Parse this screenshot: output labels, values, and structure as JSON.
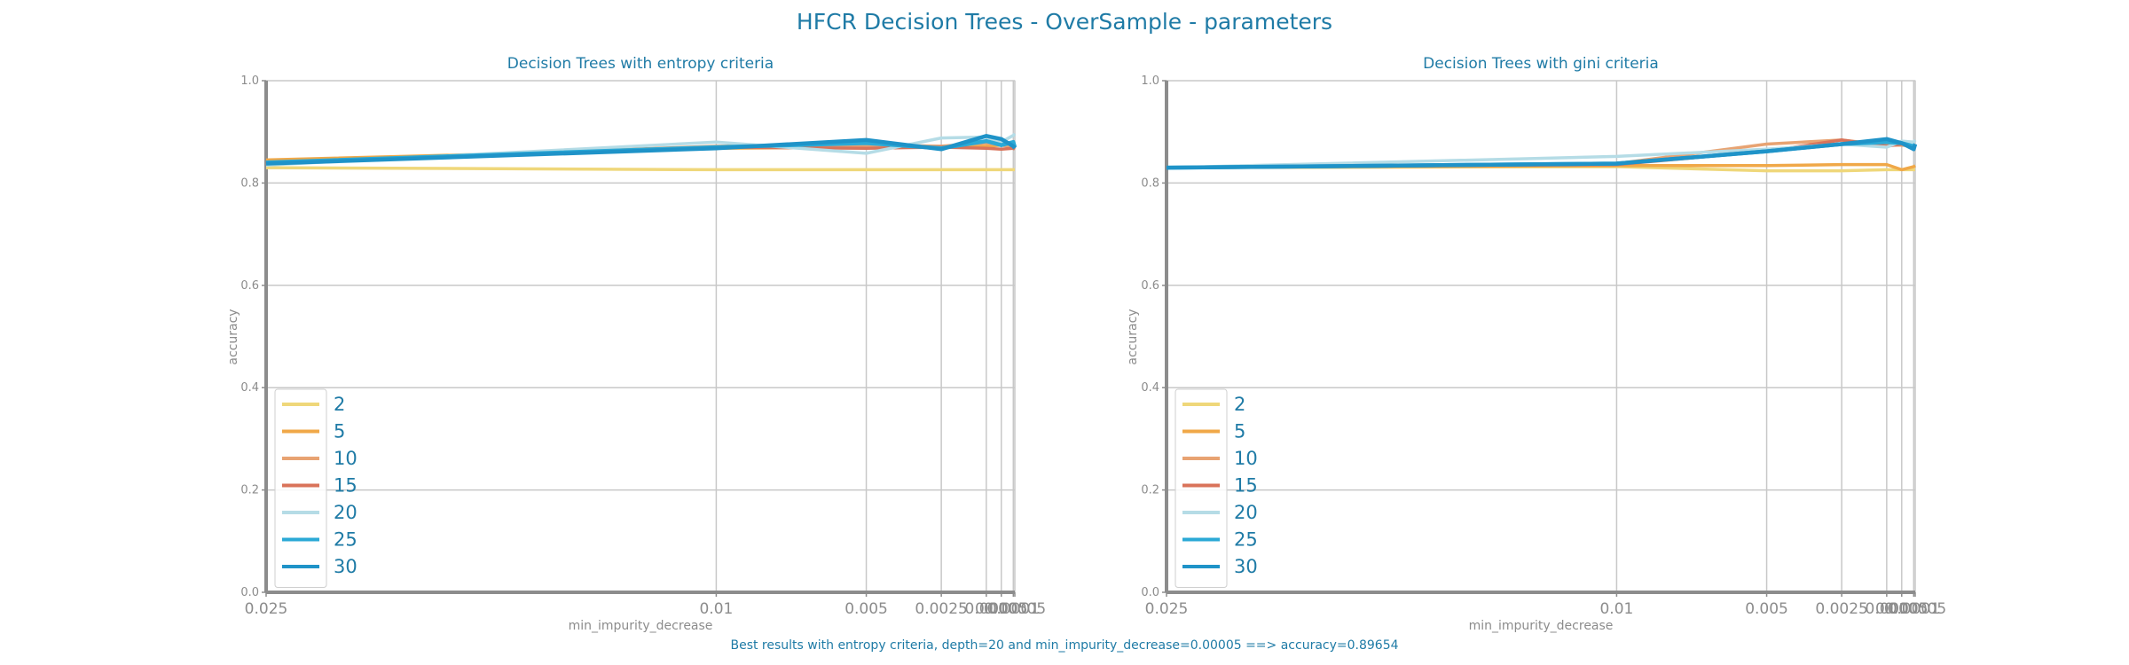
{
  "figure": {
    "title": "HFCR Decision Trees - OverSample - parameters",
    "footer": "Best results with entropy criteria, depth=20 and min_impurity_decrease=0.00005 ==> accuracy=0.89654"
  },
  "colors": {
    "text": "#1f7ba6",
    "axis": "#8c8c8c",
    "grid": "#c8c8c8",
    "series": [
      "#efd77a",
      "#f0a848",
      "#e8a372",
      "#d9735a",
      "#b5dce6",
      "#2ba9d6",
      "#1f93c8"
    ]
  },
  "chart_data": [
    {
      "type": "line",
      "title": "Decision Trees with entropy criteria",
      "xlabel": "min_impurity_decrease",
      "ylabel": "accuracy",
      "x": [
        0.025,
        0.01,
        0.005,
        0.0025,
        0.001,
        0.0005,
        0.0001,
        5e-05
      ],
      "xticklabels": [
        "0.025",
        "0.01",
        "0.005",
        "0.0025",
        "0.001",
        "0.0005",
        "0.0001",
        "0.00005"
      ],
      "xscale": "reversed-linear",
      "ylim": [
        0.0,
        1.0
      ],
      "yticks": [
        "0.0",
        "0.2",
        "0.4",
        "0.6",
        "0.8",
        "1.0"
      ],
      "grid": true,
      "legend_position": "lower-left",
      "series": [
        {
          "name": "2",
          "values": [
            0.83,
            0.826,
            0.826,
            0.826,
            0.826,
            0.826,
            0.826,
            0.826
          ]
        },
        {
          "name": "5",
          "values": [
            0.845,
            0.868,
            0.87,
            0.87,
            0.872,
            0.874,
            0.874,
            0.874
          ]
        },
        {
          "name": "10",
          "values": [
            0.84,
            0.872,
            0.874,
            0.872,
            0.878,
            0.874,
            0.87,
            0.872
          ]
        },
        {
          "name": "15",
          "values": [
            0.838,
            0.87,
            0.868,
            0.87,
            0.868,
            0.866,
            0.868,
            0.866
          ]
        },
        {
          "name": "20",
          "values": [
            0.835,
            0.88,
            0.858,
            0.888,
            0.89,
            0.88,
            0.893,
            0.8965
          ]
        },
        {
          "name": "25",
          "values": [
            0.84,
            0.87,
            0.878,
            0.868,
            0.882,
            0.874,
            0.88,
            0.87
          ]
        },
        {
          "name": "30",
          "values": [
            0.838,
            0.868,
            0.884,
            0.866,
            0.892,
            0.886,
            0.872,
            0.868
          ]
        }
      ]
    },
    {
      "type": "line",
      "title": "Decision Trees with gini criteria",
      "xlabel": "min_impurity_decrease",
      "ylabel": "accuracy",
      "x": [
        0.025,
        0.01,
        0.005,
        0.0025,
        0.001,
        0.0005,
        0.0001,
        5e-05
      ],
      "xticklabels": [
        "0.025",
        "0.01",
        "0.005",
        "0.0025",
        "0.001",
        "0.0005",
        "0.0001",
        "0.00005"
      ],
      "xscale": "reversed-linear",
      "ylim": [
        0.0,
        1.0
      ],
      "yticks": [
        "0.0",
        "0.2",
        "0.4",
        "0.6",
        "0.8",
        "1.0"
      ],
      "grid": true,
      "legend_position": "lower-left",
      "series": [
        {
          "name": "2",
          "values": [
            0.83,
            0.832,
            0.824,
            0.824,
            0.826,
            0.826,
            0.826,
            0.826
          ]
        },
        {
          "name": "5",
          "values": [
            0.83,
            0.834,
            0.834,
            0.836,
            0.836,
            0.826,
            0.832,
            0.834
          ]
        },
        {
          "name": "10",
          "values": [
            0.83,
            0.838,
            0.876,
            0.884,
            0.874,
            0.874,
            0.872,
            0.874
          ]
        },
        {
          "name": "15",
          "values": [
            0.83,
            0.836,
            0.862,
            0.884,
            0.872,
            0.876,
            0.872,
            0.874
          ]
        },
        {
          "name": "20",
          "values": [
            0.83,
            0.852,
            0.866,
            0.876,
            0.87,
            0.882,
            0.88,
            0.884
          ]
        },
        {
          "name": "25",
          "values": [
            0.83,
            0.838,
            0.862,
            0.876,
            0.88,
            0.878,
            0.872,
            0.876
          ]
        },
        {
          "name": "30",
          "values": [
            0.83,
            0.838,
            0.862,
            0.876,
            0.886,
            0.878,
            0.866,
            0.876
          ]
        }
      ]
    }
  ]
}
